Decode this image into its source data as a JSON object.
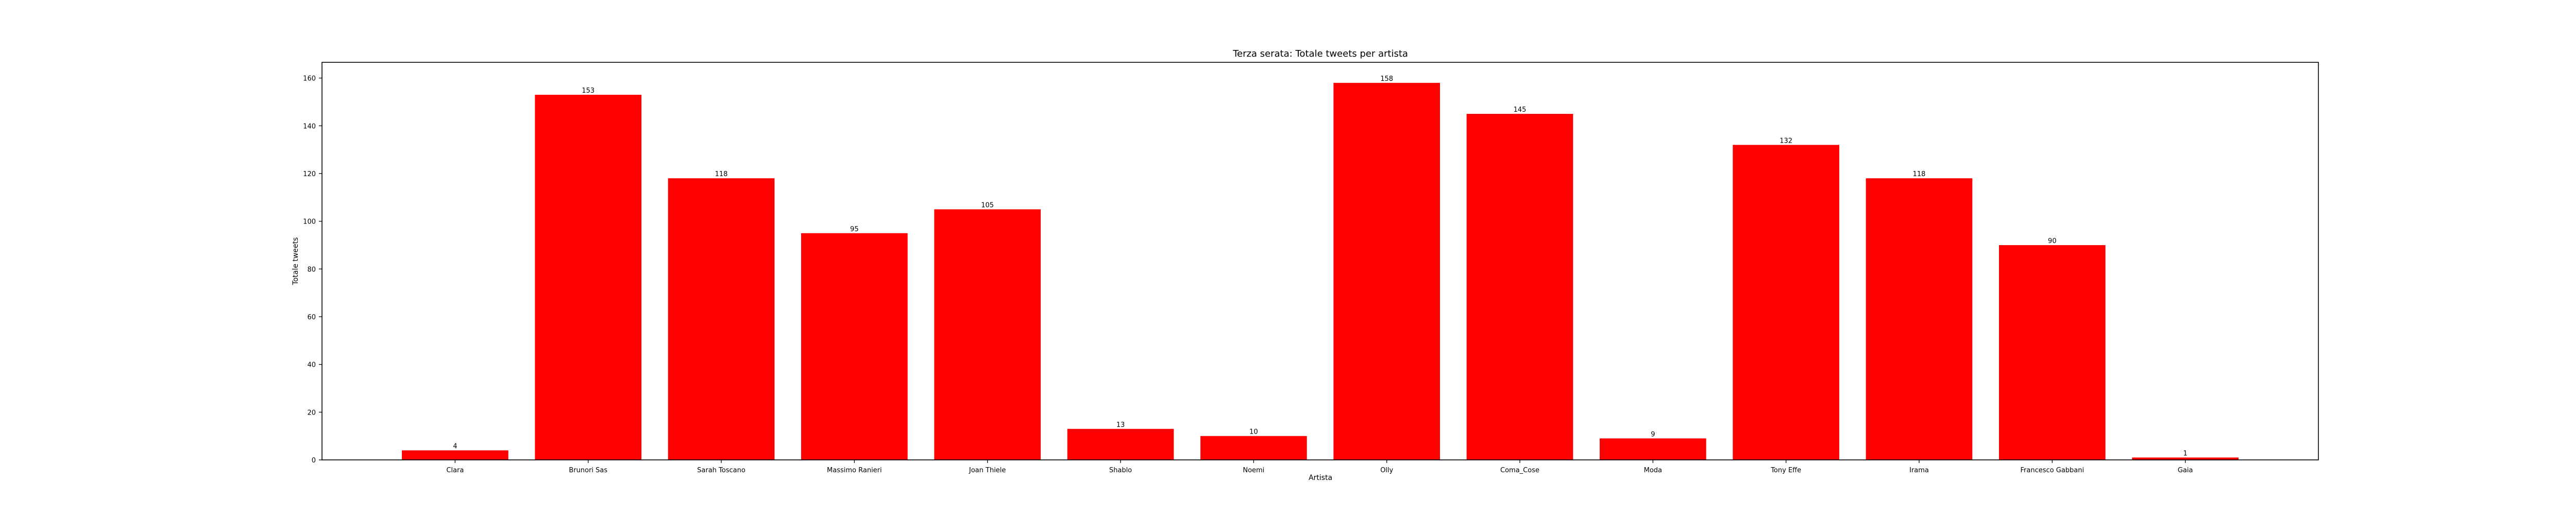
{
  "chart_data": {
    "type": "bar",
    "title": "Terza serata: Totale tweets per artista",
    "xlabel": "Artista",
    "ylabel": "Totale tweets",
    "categories": [
      "Clara",
      "Brunori Sas",
      "Sarah Toscano",
      "Massimo Ranieri",
      "Joan Thiele",
      "Shablo",
      "Noemi",
      "Olly",
      "Coma_Cose",
      "Moda",
      "Tony Effe",
      "Irama",
      "Francesco Gabbani",
      "Gaia"
    ],
    "values": [
      4,
      153,
      118,
      95,
      105,
      13,
      10,
      158,
      145,
      9,
      132,
      118,
      90,
      1
    ],
    "ylim": [
      0,
      166.6
    ],
    "yticks": [
      0,
      20,
      40,
      60,
      80,
      100,
      120,
      140,
      160
    ],
    "bar_color": "#ff0000",
    "grid": false,
    "data_labels": true
  }
}
